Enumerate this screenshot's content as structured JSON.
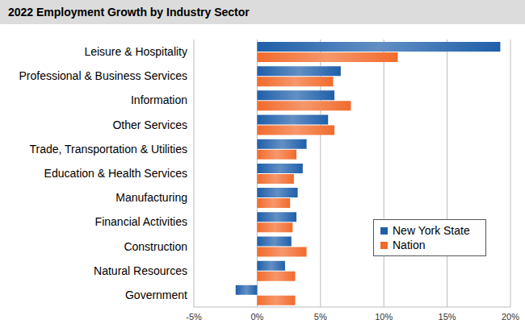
{
  "chart_data": {
    "type": "bar",
    "orientation": "horizontal",
    "title": "2022 Employment Growth by Industry Sector",
    "categories": [
      "Leisure & Hospitality",
      "Professional & Business Services",
      "Information",
      "Other Services",
      "Trade, Transportation & Utilities",
      "Education & Health Services",
      "Manufacturing",
      "Financial Activities",
      "Construction",
      "Natural Resources",
      "Government"
    ],
    "series": [
      {
        "name": "New York State",
        "color": "#1f5faa",
        "values": [
          19.2,
          6.6,
          6.1,
          5.6,
          3.9,
          3.6,
          3.2,
          3.1,
          2.7,
          2.2,
          -1.7
        ]
      },
      {
        "name": "Nation",
        "color": "#f26b2c",
        "values": [
          11.1,
          6.0,
          7.4,
          6.1,
          3.1,
          2.9,
          2.6,
          2.8,
          3.9,
          3.0,
          3.0
        ]
      }
    ],
    "xlim": [
      -5,
      20
    ],
    "xticks": [
      {
        "value": -5,
        "label": "-5%"
      },
      {
        "value": 0,
        "label": "0%"
      },
      {
        "value": 5,
        "label": "5%"
      },
      {
        "value": 10,
        "label": "10%"
      },
      {
        "value": 15,
        "label": "15%"
      },
      {
        "value": 20,
        "label": "20%"
      }
    ],
    "grid": true,
    "legend": "lower right",
    "data_labels": false
  }
}
